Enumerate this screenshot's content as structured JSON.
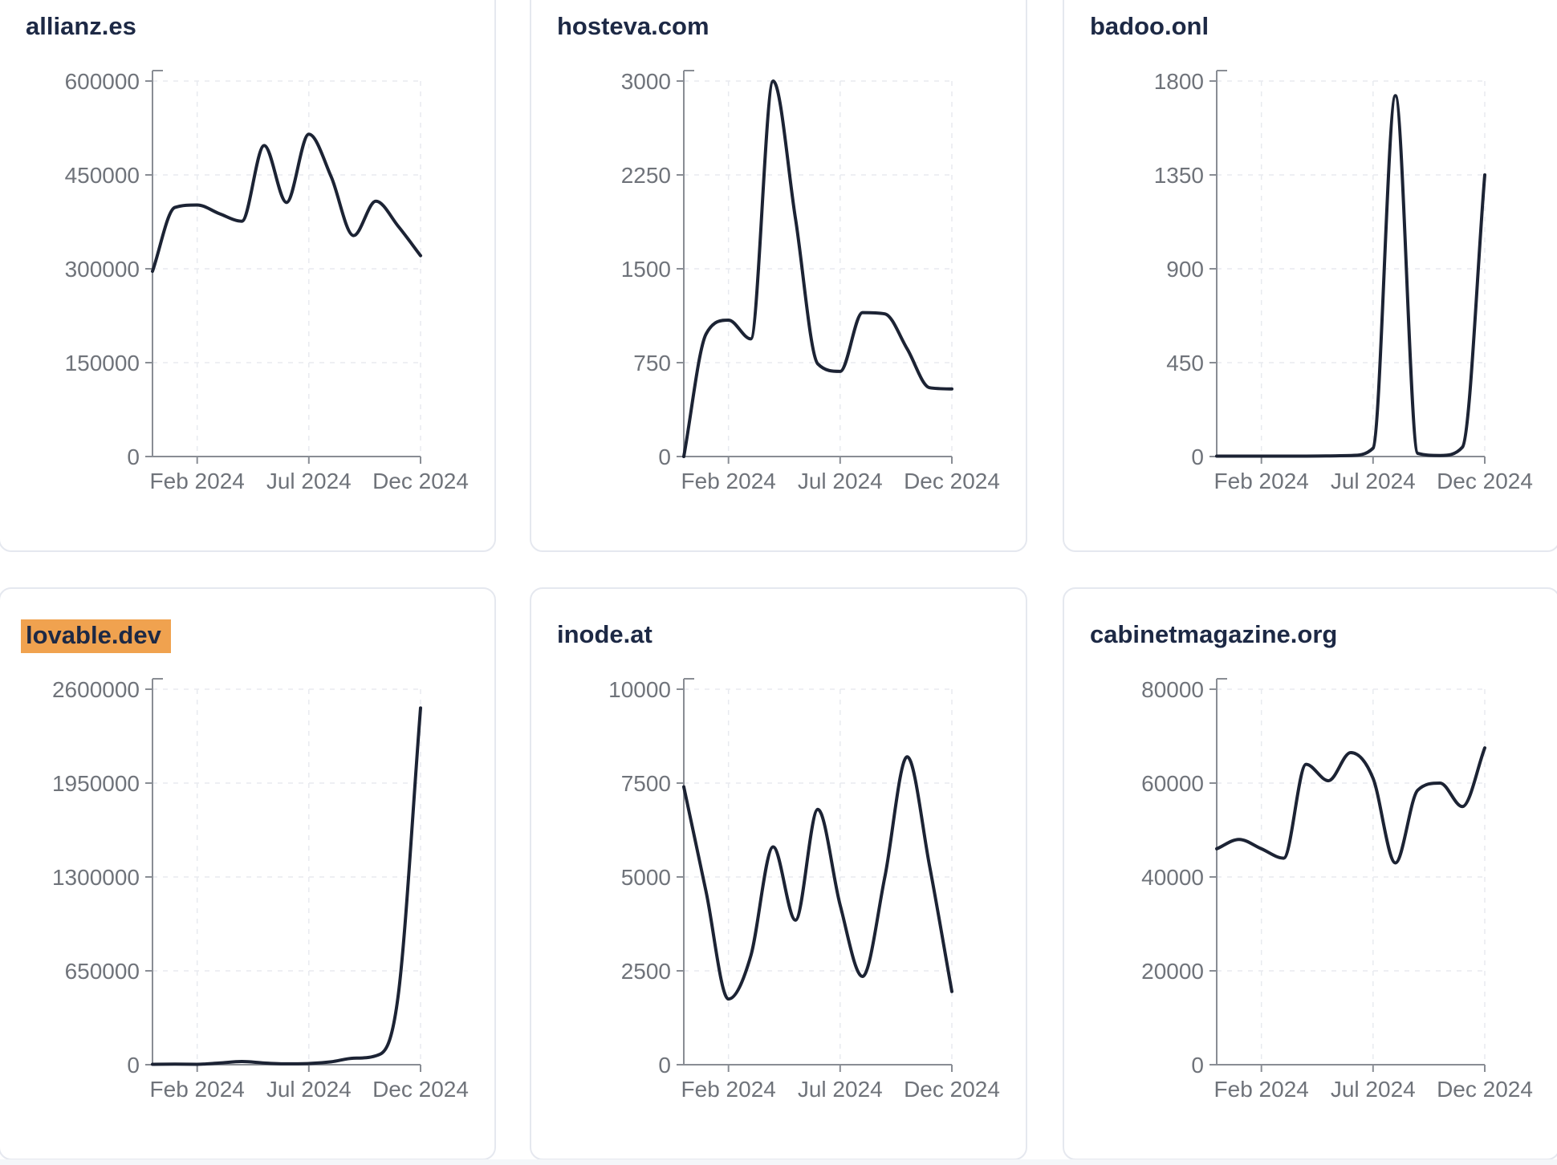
{
  "page": {
    "background": "#ffffff",
    "card_background": "#ffffff",
    "card_border_color": "#e5e8ef",
    "title_color": "#1d2945",
    "tick_label_color": "#6f737a",
    "axis_color": "#898d94",
    "grid_color": "#e8eaef",
    "line_color": "#1c2334",
    "highlight_color": "#f0a24f",
    "footer_strip_color": "#f4f6f9"
  },
  "chart_data": [
    {
      "type": "line",
      "title": "allianz.es",
      "highlighted": false,
      "x": [
        "Dec 2023",
        "Jan 2024",
        "Feb 2024",
        "Mar 2024",
        "Apr 2024",
        "May 2024",
        "Jun 2024",
        "Jul 2024",
        "Aug 2024",
        "Sep 2024",
        "Oct 2024",
        "Nov 2024",
        "Dec 2024"
      ],
      "values": [
        296000,
        398000,
        402000,
        388000,
        376000,
        497000,
        406000,
        515000,
        447000,
        353000,
        408000,
        368000,
        321000
      ],
      "ylim": [
        0,
        600000
      ],
      "y_ticks": [
        0,
        150000,
        300000,
        450000,
        600000
      ],
      "x_tick_labels": [
        {
          "i": 2,
          "label": "Feb 2024"
        },
        {
          "i": 7,
          "label": "Jul 2024"
        },
        {
          "i": 12,
          "label": "Dec 2024"
        }
      ],
      "grid": "dashed",
      "legend": "none"
    },
    {
      "type": "line",
      "title": "hosteva.com",
      "highlighted": false,
      "x": [
        "Dec 2023",
        "Jan 2024",
        "Feb 2024",
        "Mar 2024",
        "Apr 2024",
        "May 2024",
        "Jun 2024",
        "Jul 2024",
        "Aug 2024",
        "Sep 2024",
        "Oct 2024",
        "Nov 2024",
        "Dec 2024"
      ],
      "values": [
        0,
        980,
        1090,
        940,
        3000,
        1900,
        740,
        680,
        1150,
        1140,
        860,
        550,
        540
      ],
      "ylim": [
        0,
        3000
      ],
      "y_ticks": [
        0,
        750,
        1500,
        2250,
        3000
      ],
      "x_tick_labels": [
        {
          "i": 2,
          "label": "Feb 2024"
        },
        {
          "i": 7,
          "label": "Jul 2024"
        },
        {
          "i": 12,
          "label": "Dec 2024"
        }
      ],
      "grid": "dashed",
      "legend": "none"
    },
    {
      "type": "line",
      "title": "badoo.onl",
      "highlighted": false,
      "x": [
        "Dec 2023",
        "Jan 2024",
        "Feb 2024",
        "Mar 2024",
        "Apr 2024",
        "May 2024",
        "Jun 2024",
        "Jul 2024",
        "Aug 2024",
        "Sep 2024",
        "Oct 2024",
        "Nov 2024",
        "Dec 2024"
      ],
      "values": [
        2,
        2,
        2,
        2,
        2,
        3,
        5,
        40,
        1730,
        15,
        5,
        45,
        1350
      ],
      "ylim": [
        0,
        1800
      ],
      "y_ticks": [
        0,
        450,
        900,
        1350,
        1800
      ],
      "x_tick_labels": [
        {
          "i": 2,
          "label": "Feb 2024"
        },
        {
          "i": 7,
          "label": "Jul 2024"
        },
        {
          "i": 12,
          "label": "Dec 2024"
        }
      ],
      "grid": "dashed",
      "legend": "none"
    },
    {
      "type": "line",
      "title": "lovable.dev",
      "highlighted": true,
      "x": [
        "Dec 2023",
        "Jan 2024",
        "Feb 2024",
        "Mar 2024",
        "Apr 2024",
        "May 2024",
        "Jun 2024",
        "Jul 2024",
        "Aug 2024",
        "Sep 2024",
        "Oct 2024",
        "Nov 2024",
        "Dec 2024"
      ],
      "values": [
        3000,
        4000,
        3000,
        12000,
        22000,
        12000,
        6000,
        8000,
        20000,
        45000,
        62000,
        480000,
        2470000
      ],
      "ylim": [
        0,
        2600000
      ],
      "y_ticks": [
        0,
        650000,
        1300000,
        1950000,
        2600000
      ],
      "x_tick_labels": [
        {
          "i": 2,
          "label": "Feb 2024"
        },
        {
          "i": 7,
          "label": "Jul 2024"
        },
        {
          "i": 12,
          "label": "Dec 2024"
        }
      ],
      "grid": "dashed",
      "legend": "none"
    },
    {
      "type": "line",
      "title": "inode.at",
      "highlighted": false,
      "x": [
        "Dec 2023",
        "Jan 2024",
        "Feb 2024",
        "Mar 2024",
        "Apr 2024",
        "May 2024",
        "Jun 2024",
        "Jul 2024",
        "Aug 2024",
        "Sep 2024",
        "Oct 2024",
        "Nov 2024",
        "Dec 2024"
      ],
      "values": [
        7400,
        4600,
        1750,
        2900,
        5800,
        3850,
        6800,
        4250,
        2350,
        5000,
        8200,
        5300,
        1950
      ],
      "ylim": [
        0,
        10000
      ],
      "y_ticks": [
        0,
        2500,
        5000,
        7500,
        10000
      ],
      "x_tick_labels": [
        {
          "i": 2,
          "label": "Feb 2024"
        },
        {
          "i": 7,
          "label": "Jul 2024"
        },
        {
          "i": 12,
          "label": "Dec 2024"
        }
      ],
      "grid": "dashed",
      "legend": "none"
    },
    {
      "type": "line",
      "title": "cabinetmagazine.org",
      "highlighted": false,
      "x": [
        "Dec 2023",
        "Jan 2024",
        "Feb 2024",
        "Mar 2024",
        "Apr 2024",
        "May 2024",
        "Jun 2024",
        "Jul 2024",
        "Aug 2024",
        "Sep 2024",
        "Oct 2024",
        "Nov 2024",
        "Dec 2024"
      ],
      "values": [
        46000,
        48000,
        46000,
        44000,
        64000,
        60500,
        66500,
        61000,
        43000,
        58500,
        60000,
        55000,
        67500
      ],
      "ylim": [
        0,
        80000
      ],
      "y_ticks": [
        0,
        20000,
        40000,
        60000,
        80000
      ],
      "x_tick_labels": [
        {
          "i": 2,
          "label": "Feb 2024"
        },
        {
          "i": 7,
          "label": "Jul 2024"
        },
        {
          "i": 12,
          "label": "Dec 2024"
        }
      ],
      "grid": "dashed",
      "legend": "none"
    }
  ]
}
